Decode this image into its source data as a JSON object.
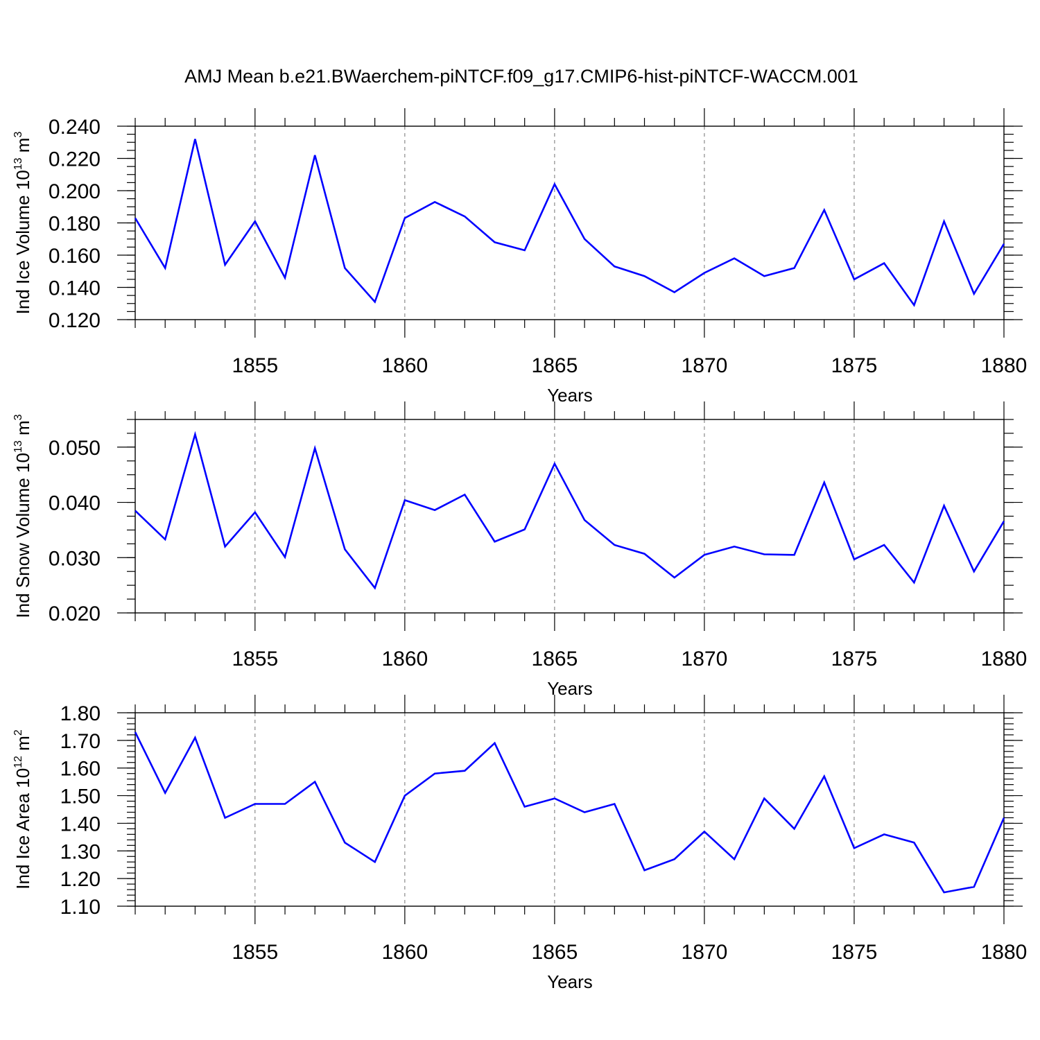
{
  "figure": {
    "title": "AMJ Mean b.e21.BWaerchem-piNTCF.f09_g17.CMIP6-hist-piNTCF-WACCM.001"
  },
  "colors": {
    "line": "#0000ff",
    "axis": "#000000",
    "background": "#ffffff"
  },
  "chart_data": [
    {
      "type": "line",
      "ylabel": {
        "main": "Ind Ice Volume 10",
        "sup": "13",
        "unit": " m",
        "unit_sup": "3"
      },
      "xlabel": "Years",
      "xlim": [
        1851,
        1880
      ],
      "xticks": [
        1855,
        1860,
        1865,
        1870,
        1875,
        1880
      ],
      "ylim": [
        0.12,
        0.24
      ],
      "yticks": [
        0.12,
        0.14,
        0.16,
        0.18,
        0.2,
        0.22,
        0.24
      ],
      "ytick_labels": [
        "0.120",
        "0.140",
        "0.160",
        "0.180",
        "0.200",
        "0.220",
        "0.240"
      ],
      "ytick_minor_step": 0.005,
      "grid": "dashed vertical at major x ticks",
      "x": [
        1851,
        1852,
        1853,
        1854,
        1855,
        1856,
        1857,
        1858,
        1859,
        1860,
        1861,
        1862,
        1863,
        1864,
        1865,
        1866,
        1867,
        1868,
        1869,
        1870,
        1871,
        1872,
        1873,
        1874,
        1875,
        1876,
        1877,
        1878,
        1879,
        1880
      ],
      "series": [
        {
          "name": "Ind Ice Volume",
          "values": [
            0.183,
            0.152,
            0.232,
            0.154,
            0.181,
            0.146,
            0.222,
            0.152,
            0.131,
            0.183,
            0.193,
            0.184,
            0.168,
            0.163,
            0.204,
            0.17,
            0.153,
            0.147,
            0.137,
            0.149,
            0.158,
            0.147,
            0.152,
            0.188,
            0.145,
            0.155,
            0.129,
            0.181,
            0.136,
            0.167
          ]
        }
      ]
    },
    {
      "type": "line",
      "ylabel": {
        "main": "Ind Snow Volume 10",
        "sup": "13",
        "unit": " m",
        "unit_sup": "3"
      },
      "xlabel": "Years",
      "xlim": [
        1851,
        1880
      ],
      "xticks": [
        1855,
        1860,
        1865,
        1870,
        1875,
        1880
      ],
      "ylim": [
        0.02,
        0.055
      ],
      "yticks": [
        0.02,
        0.03,
        0.04,
        0.05
      ],
      "ytick_labels": [
        "0.020",
        "0.030",
        "0.040",
        "0.050"
      ],
      "ytick_minor_step": 0.0025,
      "grid": "dashed vertical at major x ticks",
      "x": [
        1851,
        1852,
        1853,
        1854,
        1855,
        1856,
        1857,
        1858,
        1859,
        1860,
        1861,
        1862,
        1863,
        1864,
        1865,
        1866,
        1867,
        1868,
        1869,
        1870,
        1871,
        1872,
        1873,
        1874,
        1875,
        1876,
        1877,
        1878,
        1879,
        1880
      ],
      "series": [
        {
          "name": "Ind Snow Volume",
          "values": [
            0.0385,
            0.0333,
            0.0523,
            0.032,
            0.0382,
            0.0301,
            0.0498,
            0.0315,
            0.0245,
            0.0404,
            0.0386,
            0.0414,
            0.0329,
            0.0351,
            0.047,
            0.0368,
            0.0323,
            0.0307,
            0.0264,
            0.0305,
            0.032,
            0.0306,
            0.0305,
            0.0436,
            0.0297,
            0.0323,
            0.0255,
            0.0394,
            0.0275,
            0.0366
          ]
        }
      ]
    },
    {
      "type": "line",
      "ylabel": {
        "main": "Ind Ice Area 10",
        "sup": "12",
        "unit": " m",
        "unit_sup": "2"
      },
      "xlabel": "Years",
      "xlim": [
        1851,
        1880
      ],
      "xticks": [
        1855,
        1860,
        1865,
        1870,
        1875,
        1880
      ],
      "ylim": [
        1.1,
        1.8
      ],
      "yticks": [
        1.1,
        1.2,
        1.3,
        1.4,
        1.5,
        1.6,
        1.7,
        1.8
      ],
      "ytick_labels": [
        "1.10",
        "1.20",
        "1.30",
        "1.40",
        "1.50",
        "1.60",
        "1.70",
        "1.80"
      ],
      "ytick_minor_step": 0.02,
      "grid": "dashed vertical at major x ticks",
      "x": [
        1851,
        1852,
        1853,
        1854,
        1855,
        1856,
        1857,
        1858,
        1859,
        1860,
        1861,
        1862,
        1863,
        1864,
        1865,
        1866,
        1867,
        1868,
        1869,
        1870,
        1871,
        1872,
        1873,
        1874,
        1875,
        1876,
        1877,
        1878,
        1879,
        1880
      ],
      "series": [
        {
          "name": "Ind Ice Area",
          "values": [
            1.73,
            1.51,
            1.71,
            1.42,
            1.47,
            1.47,
            1.55,
            1.33,
            1.26,
            1.5,
            1.58,
            1.59,
            1.69,
            1.46,
            1.49,
            1.44,
            1.47,
            1.23,
            1.27,
            1.37,
            1.27,
            1.49,
            1.38,
            1.57,
            1.31,
            1.36,
            1.33,
            1.15,
            1.17,
            1.42
          ]
        }
      ]
    }
  ]
}
